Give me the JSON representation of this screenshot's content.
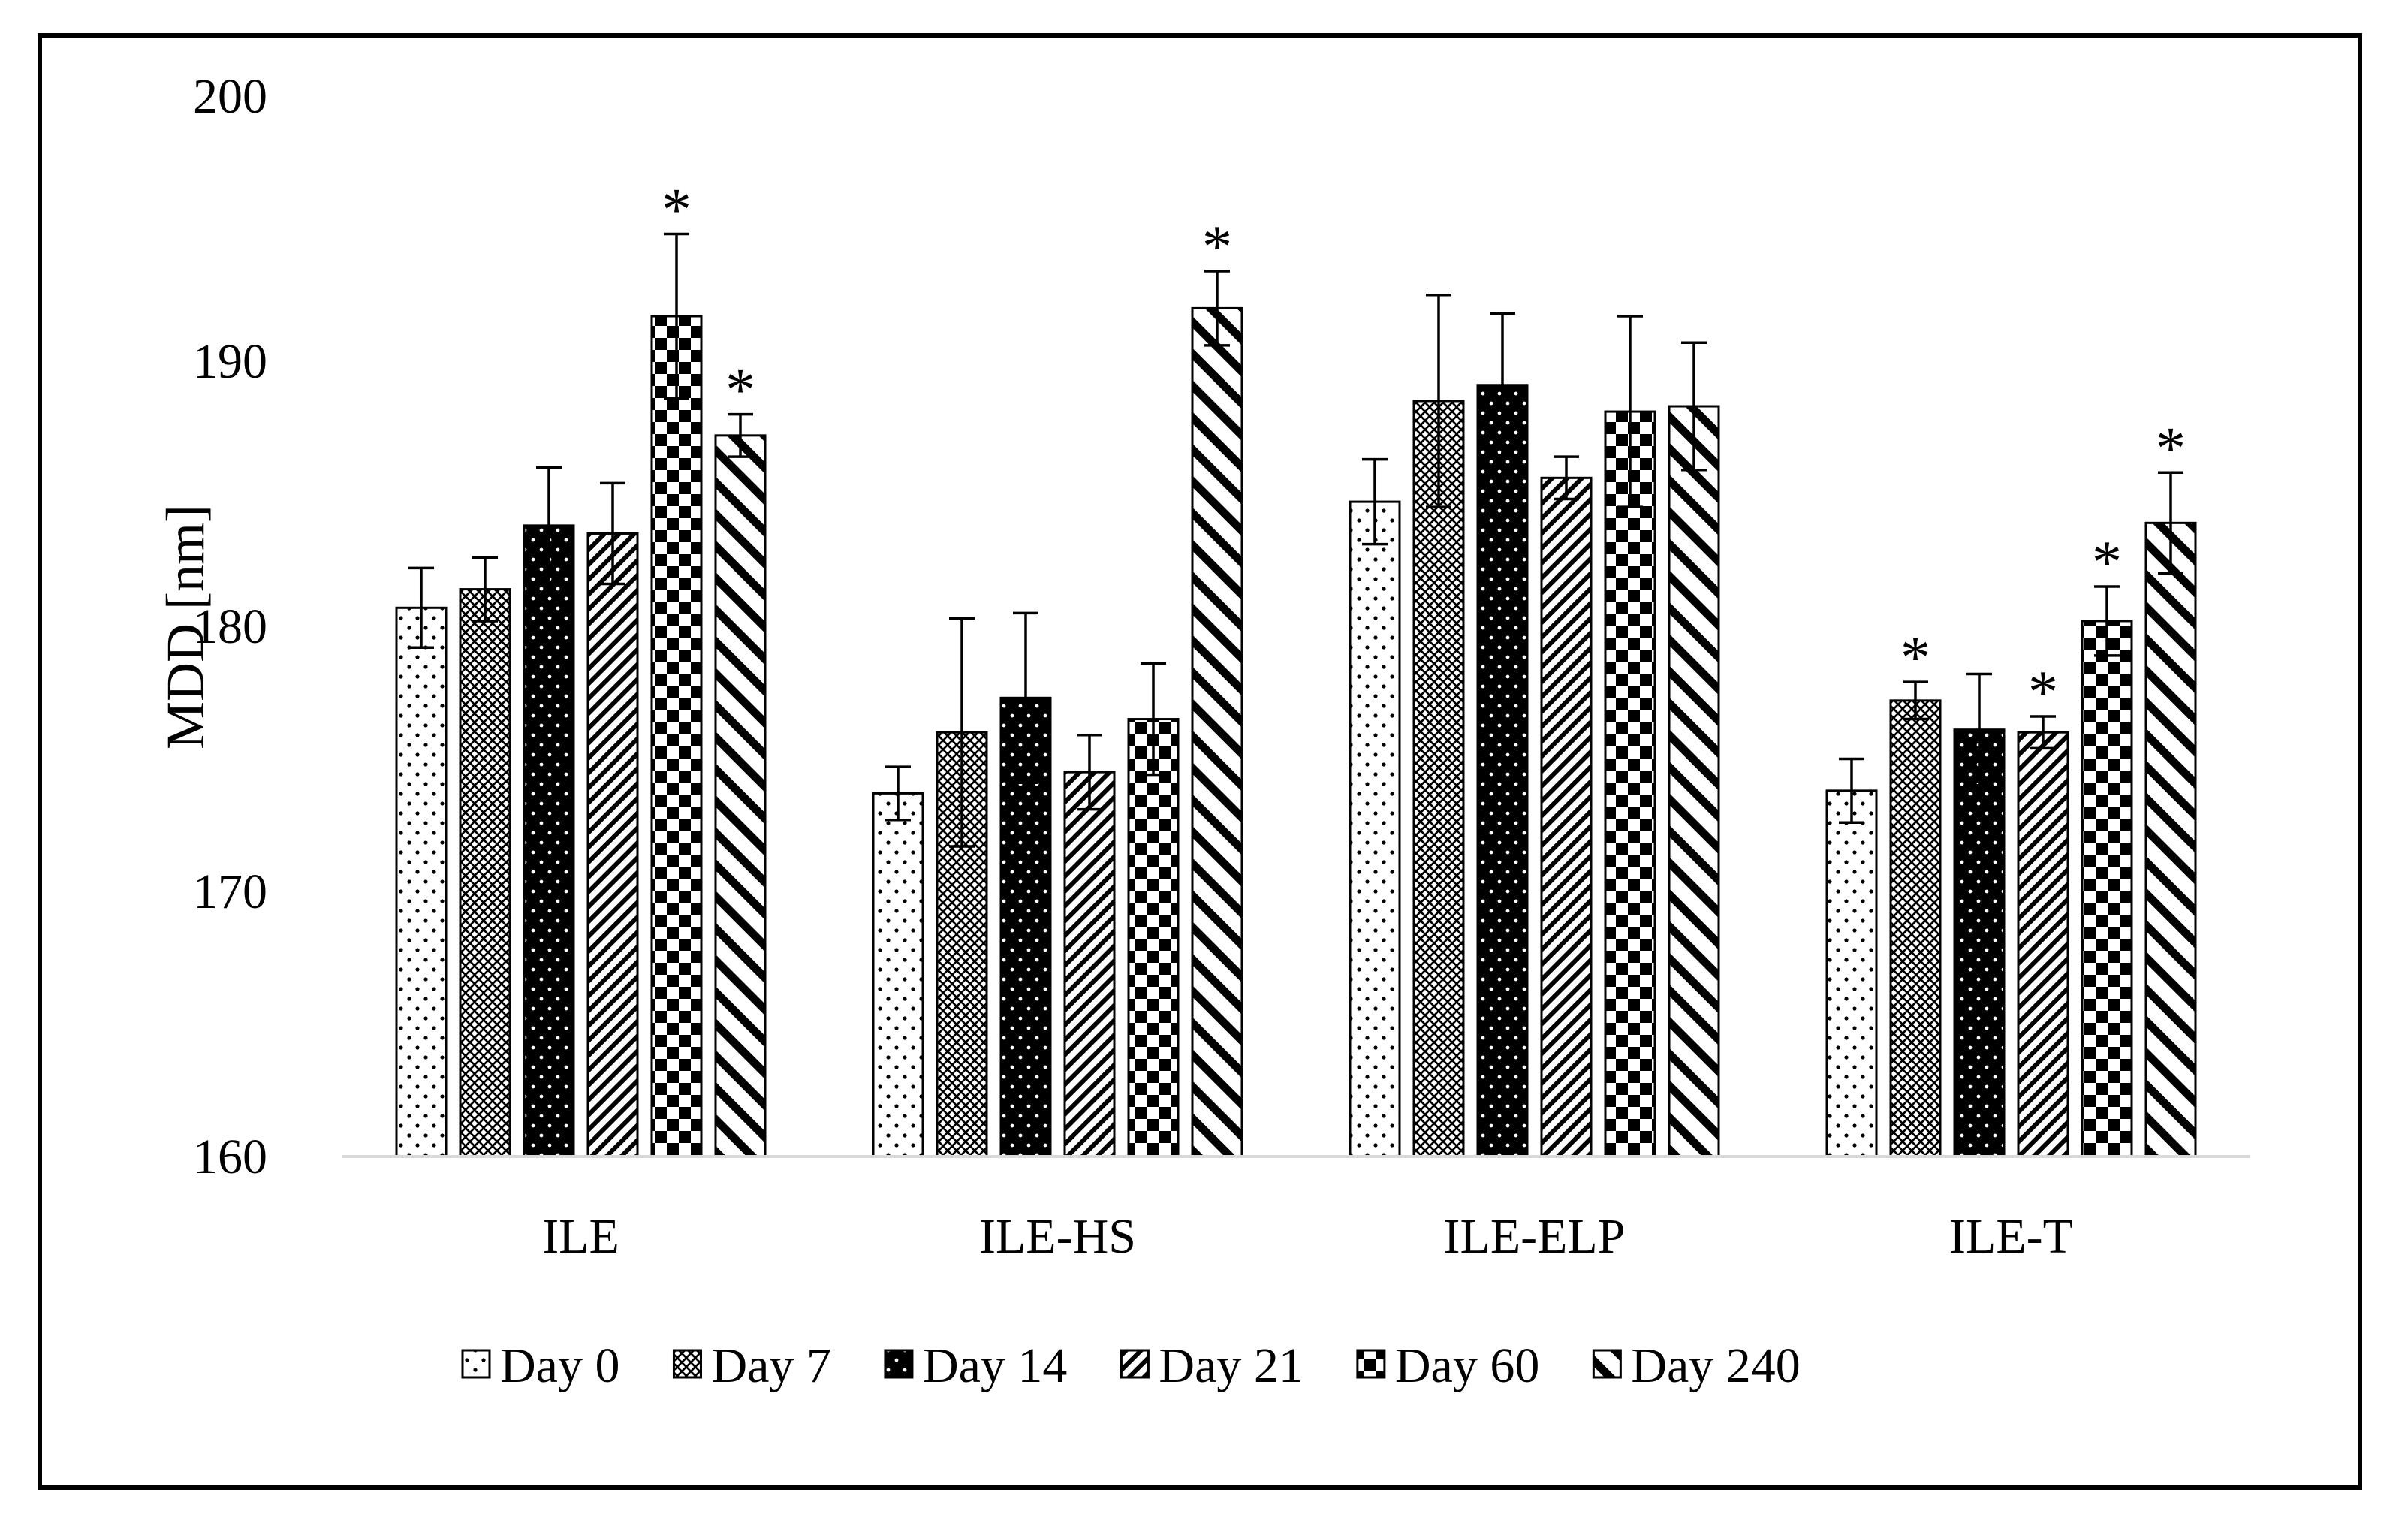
{
  "chart_data": {
    "type": "bar",
    "ylabel": "MDD [nm]",
    "ylim": [
      160,
      200
    ],
    "yticks": [
      "160",
      "170",
      "180",
      "190",
      "200"
    ],
    "categories": [
      "ILE",
      "ILE-HS",
      "ILE-ELP",
      "ILE-T"
    ],
    "legend_position": "bottom",
    "grid": false,
    "significance_symbol": "*",
    "series": [
      {
        "name": "Day 0",
        "pattern": "dots",
        "values": [
          180.7,
          173.7,
          184.7,
          173.8
        ],
        "errors": [
          1.5,
          1.0,
          1.6,
          1.2
        ],
        "significant": [
          false,
          false,
          false,
          false
        ]
      },
      {
        "name": "Day 7",
        "pattern": "crosshatch",
        "values": [
          181.4,
          176.0,
          188.5,
          177.2
        ],
        "errors": [
          1.2,
          4.3,
          4.0,
          0.7
        ],
        "significant": [
          false,
          false,
          false,
          true
        ]
      },
      {
        "name": "Day 14",
        "pattern": "black-dots",
        "values": [
          183.8,
          177.3,
          189.1,
          176.1
        ],
        "errors": [
          2.2,
          3.2,
          2.7,
          2.1
        ],
        "significant": [
          false,
          false,
          false,
          false
        ]
      },
      {
        "name": "Day 21",
        "pattern": "diagonal-dense",
        "values": [
          183.5,
          174.5,
          185.6,
          176.0
        ],
        "errors": [
          1.9,
          1.4,
          0.8,
          0.6
        ],
        "significant": [
          false,
          false,
          false,
          true
        ]
      },
      {
        "name": "Day 60",
        "pattern": "checker",
        "values": [
          191.7,
          176.5,
          188.1,
          180.2
        ],
        "errors": [
          3.1,
          2.1,
          3.6,
          1.3
        ],
        "significant": [
          true,
          false,
          false,
          true
        ]
      },
      {
        "name": "Day 240",
        "pattern": "diagonal-wide",
        "values": [
          187.2,
          192.0,
          188.3,
          183.9
        ],
        "errors": [
          0.8,
          1.4,
          2.4,
          1.9
        ],
        "significant": [
          true,
          true,
          false,
          true
        ]
      }
    ]
  },
  "colors": {
    "ink": "#000000",
    "paper": "#ffffff",
    "axis": "#d9d9d9"
  }
}
